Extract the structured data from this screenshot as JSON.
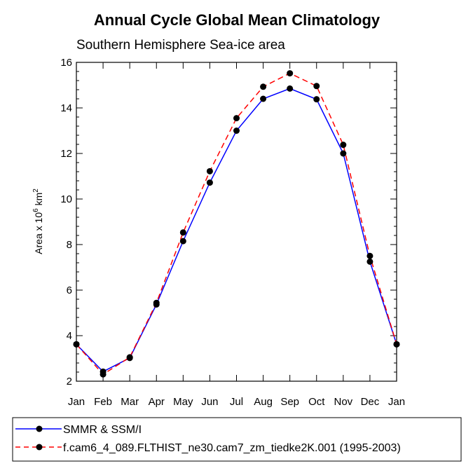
{
  "chart_data": {
    "type": "line",
    "title": "Annual Cycle Global Mean Climatology",
    "subtitle": "Southern Hemisphere Sea-ice area",
    "ylabel": {
      "prefix": "Area x 10",
      "exp": "6",
      "unit": " km",
      "unit_exp": "2"
    },
    "ylim": [
      2,
      16
    ],
    "yticks": [
      2,
      4,
      6,
      8,
      10,
      12,
      14,
      16
    ],
    "categories": [
      "Jan",
      "Feb",
      "Mar",
      "Apr",
      "May",
      "Jun",
      "Jul",
      "Aug",
      "Sep",
      "Oct",
      "Nov",
      "Dec",
      "Jan"
    ],
    "series": [
      {
        "name": "SMMR & SSM/I",
        "color": "#0000ff",
        "dash": "solid",
        "values": [
          3.62,
          2.42,
          3.02,
          5.37,
          8.15,
          10.72,
          13.0,
          14.4,
          14.85,
          14.38,
          12.0,
          7.25,
          3.62
        ]
      },
      {
        "name": "f.cam6_4_089.FLTHIST_ne30.cam7_zm_tiedke2K.001 (1995-2003)",
        "color": "#ff0000",
        "dash": "dashed",
        "values": [
          3.62,
          2.3,
          3.05,
          5.44,
          8.53,
          11.22,
          13.55,
          14.93,
          15.52,
          14.96,
          12.38,
          7.5,
          3.62
        ]
      }
    ],
    "marker": "filled-circle",
    "marker_color": "#000000",
    "legend_position": "bottom",
    "grid": false
  }
}
